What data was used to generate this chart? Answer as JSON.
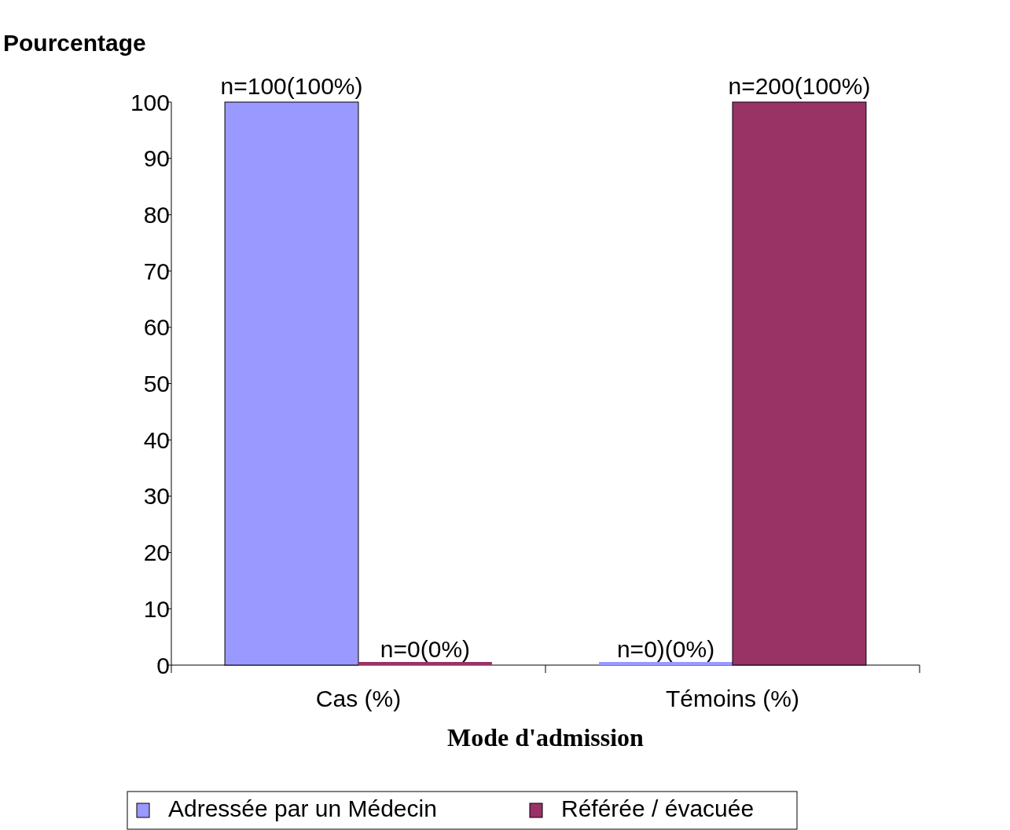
{
  "chart_data": {
    "type": "bar",
    "xlabel": "Mode d'admission",
    "ylabel": "Pourcentage",
    "categories": [
      "Cas (%)",
      "Témoins (%)"
    ],
    "series": [
      {
        "name": "Adressée par un Médecin",
        "color": "#9999ff",
        "values": [
          100,
          0
        ],
        "value_labels": [
          "n=100(100%)",
          "n=0)(0%)"
        ]
      },
      {
        "name": "Référée / évacuée",
        "color": "#993366",
        "values": [
          0,
          100
        ],
        "value_labels": [
          "n=0(0%)",
          "n=200(100%)"
        ]
      }
    ],
    "ylim": [
      0,
      100
    ],
    "yticks": [
      0,
      10,
      20,
      30,
      40,
      50,
      60,
      70,
      80,
      90,
      100
    ],
    "grid": false,
    "legend": "bottom"
  }
}
